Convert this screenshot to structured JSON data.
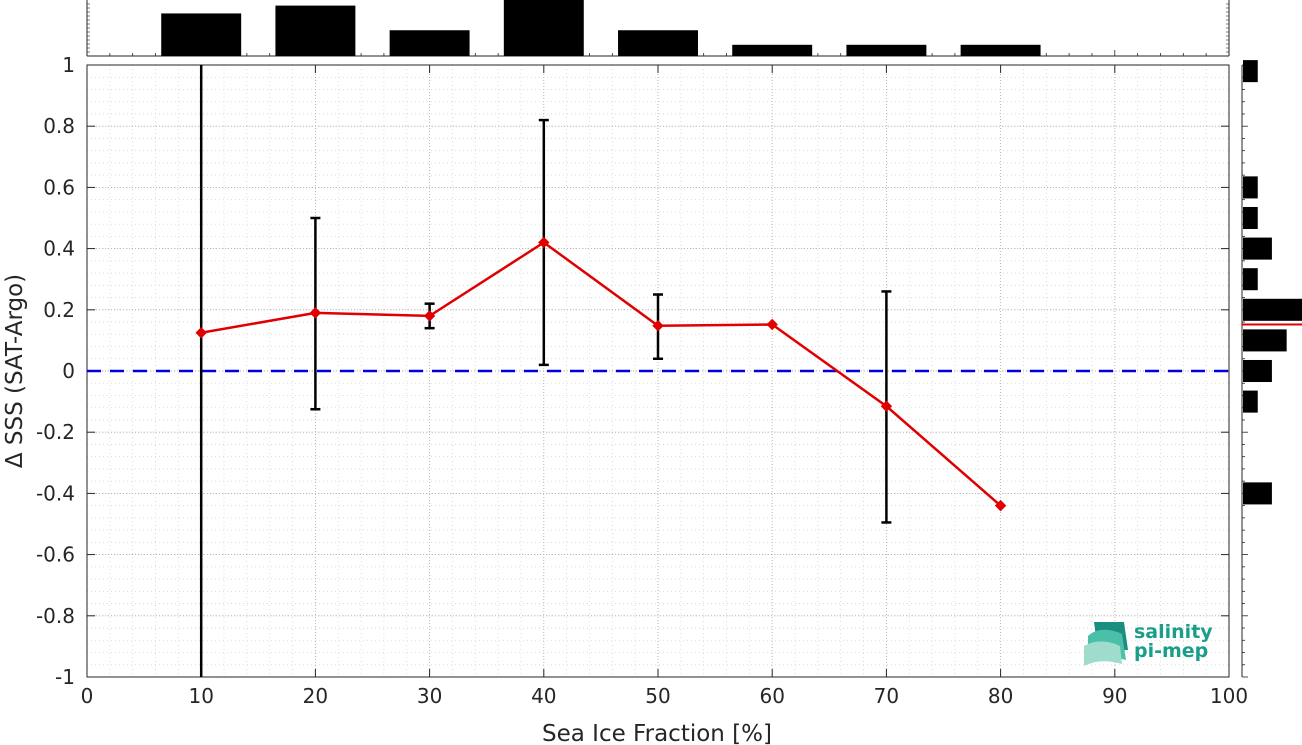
{
  "chart_data": {
    "type": "line",
    "xlabel": "Sea Ice Fraction [%]",
    "ylabel": "Δ SSS (SAT-Argo)",
    "xlim": [
      0,
      100
    ],
    "ylim": [
      -1,
      1
    ],
    "xticks": [
      "0",
      "10",
      "20",
      "30",
      "40",
      "50",
      "60",
      "70",
      "80",
      "90",
      "100"
    ],
    "yticks": [
      "-1",
      "-0.8",
      "-0.6",
      "-0.4",
      "-0.2",
      "0",
      "0.2",
      "0.4",
      "0.6",
      "0.8",
      "1"
    ],
    "grid": true,
    "series": [
      {
        "color": "#e00000",
        "x": [
          10,
          20,
          30,
          40,
          50,
          60,
          70,
          80
        ],
        "y": [
          0.125,
          0.19,
          0.18,
          0.42,
          0.148,
          0.152,
          -0.115,
          -0.44
        ],
        "err_low": [
          -1.0,
          -0.125,
          0.14,
          0.02,
          0.04,
          0.152,
          -0.495,
          -0.44
        ],
        "err_high": [
          1.0,
          0.5,
          0.22,
          0.82,
          0.25,
          0.152,
          0.26,
          -0.44
        ]
      }
    ],
    "reference_line": {
      "y": 0,
      "color": "#0000dd",
      "style": "dashed"
    },
    "top_histogram": {
      "color": "#000000",
      "bins": [
        10,
        20,
        30,
        40,
        50,
        60,
        70,
        80
      ],
      "values": [
        0.76,
        0.9,
        0.46,
        1.0,
        0.46,
        0.2,
        0.2,
        0.2
      ]
    },
    "right_histogram": {
      "color": "#000000",
      "bins": [
        0.98,
        0.6,
        0.5,
        0.4,
        0.3,
        0.2,
        0.1,
        0.0,
        -0.1,
        -0.4
      ],
      "values": [
        0.25,
        0.25,
        0.25,
        0.49,
        0.25,
        1.0,
        0.74,
        0.49,
        0.25,
        0.49
      ],
      "mean_line": {
        "y": 0.152,
        "color": "#e00000"
      }
    }
  },
  "logo": {
    "line1": "salinity",
    "line2": "pi-mep",
    "color": "#1a9e8a"
  }
}
